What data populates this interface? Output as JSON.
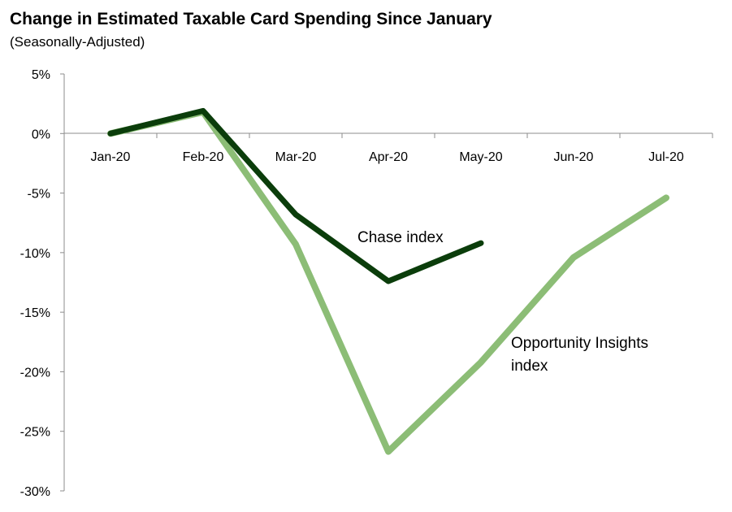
{
  "chart_data": {
    "type": "line",
    "title": "Change in Estimated Taxable Card Spending Since January",
    "subtitle": "(Seasonally-Adjusted)",
    "categories": [
      "Jan-20",
      "Feb-20",
      "Mar-20",
      "Apr-20",
      "May-20",
      "Jun-20",
      "Jul-20"
    ],
    "ylim": [
      -30,
      5
    ],
    "yticks": [
      5,
      0,
      -5,
      -10,
      -15,
      -20,
      -25,
      -30
    ],
    "ytick_labels": [
      "5%",
      "0%",
      "-5%",
      "-10%",
      "-15%",
      "-20%",
      "-25%",
      "-30%"
    ],
    "xlabel": "",
    "ylabel": "",
    "series": [
      {
        "name": "Opportunity Insights index",
        "label_lines": [
          "Opportunity Insights",
          "index"
        ],
        "color": "#8cbd76",
        "values": [
          0,
          1.8,
          -9.3,
          -26.7,
          -19.2,
          -10.4,
          -5.4
        ]
      },
      {
        "name": "Chase index",
        "label_lines": [
          "Chase index"
        ],
        "color": "#0b3d0b",
        "values": [
          0,
          1.9,
          -6.8,
          -12.4,
          -9.2,
          null,
          null
        ]
      }
    ]
  }
}
